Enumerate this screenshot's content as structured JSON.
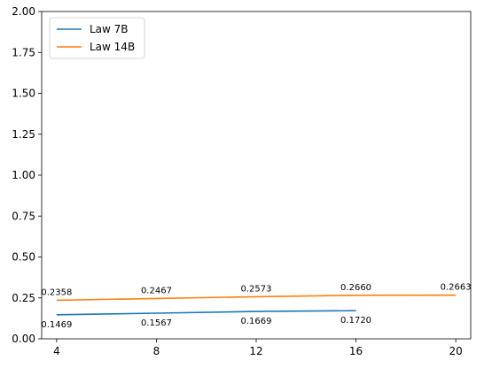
{
  "chart_data": {
    "type": "line",
    "x": [
      4,
      8,
      12,
      16,
      20
    ],
    "xticks": [
      "4",
      "8",
      "12",
      "16",
      "20"
    ],
    "yticks": [
      "0.00",
      "0.25",
      "0.50",
      "0.75",
      "1.00",
      "1.25",
      "1.50",
      "1.75",
      "2.00"
    ],
    "ylim": [
      0,
      2
    ],
    "grid": false,
    "legend_position": "top-left",
    "series": [
      {
        "name": "Law 7B",
        "color": "#1f77b4",
        "x": [
          4,
          8,
          12,
          16
        ],
        "values": [
          0.1469,
          0.1567,
          0.1669,
          0.172
        ],
        "labels": [
          "0.1469",
          "0.1567",
          "0.1669",
          "0.1720"
        ],
        "label_side": "below"
      },
      {
        "name": "Law 14B",
        "color": "#ff7f0e",
        "x": [
          4,
          8,
          12,
          16,
          20
        ],
        "values": [
          0.2358,
          0.2467,
          0.2573,
          0.266,
          0.2663
        ],
        "labels": [
          "0.2358",
          "0.2467",
          "0.2573",
          "0.2660",
          "0.2663"
        ],
        "label_side": "above"
      }
    ]
  }
}
